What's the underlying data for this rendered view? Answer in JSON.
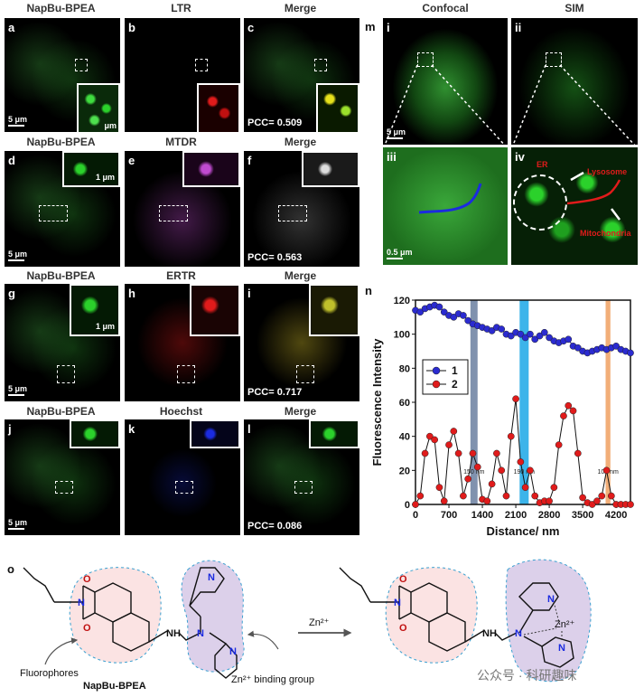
{
  "headers": {
    "col1": "NapBu-BPEA",
    "col2_row1": "LTR",
    "col3": "Merge",
    "col2_row2": "MTDR",
    "col2_row3": "ERTR",
    "col2_row4": "Hoechst",
    "confocal": "Confocal",
    "sim": "SIM"
  },
  "panels": {
    "a": "a",
    "b": "b",
    "c": "c",
    "d": "d",
    "e": "e",
    "f": "f",
    "g": "g",
    "h": "h",
    "i": "i",
    "j": "j",
    "k": "k",
    "l": "l",
    "m": "m",
    "mi": "i",
    "mii": "ii",
    "miii": "iii",
    "miv": "iv",
    "n": "n",
    "o": "o"
  },
  "scale": {
    "five_um": "5 μm",
    "one_um": "1 μm",
    "half_um": "0.5 μm",
    "um": "μm"
  },
  "pcc": {
    "c": "PCC= 0.509",
    "f": "PCC= 0.563",
    "i": "PCC= 0.717",
    "l": "PCC= 0.086"
  },
  "sim_labels": {
    "er": "ER",
    "lysosome": "Lysosome",
    "mitochondria": "Mitochondria"
  },
  "colors": {
    "green": "#2bd12b",
    "red": "#e01b1b",
    "magenta": "#c04bd0",
    "blue": "#1b2be0",
    "yellow": "#e6e01b"
  },
  "chart_data": {
    "type": "line",
    "xlabel": "Distance/ nm",
    "ylabel": "Fluorescence Intensity",
    "xlim": [
      0,
      4500
    ],
    "ylim": [
      0,
      120
    ],
    "xticks": [
      0,
      700,
      1400,
      2100,
      2800,
      3500,
      4200
    ],
    "yticks": [
      0,
      20,
      40,
      60,
      80,
      100,
      120
    ],
    "series": [
      {
        "name": "1",
        "color": "#2b2bd0",
        "x": [
          0,
          100,
          200,
          300,
          400,
          500,
          600,
          700,
          800,
          900,
          1000,
          1100,
          1200,
          1300,
          1400,
          1500,
          1600,
          1700,
          1800,
          1900,
          2000,
          2100,
          2200,
          2300,
          2400,
          2500,
          2600,
          2700,
          2800,
          2900,
          3000,
          3100,
          3200,
          3300,
          3400,
          3500,
          3600,
          3700,
          3800,
          3900,
          4000,
          4100,
          4200,
          4300,
          4400,
          4500
        ],
        "y": [
          114,
          113,
          115,
          116,
          117,
          116,
          113,
          111,
          110,
          112,
          111,
          108,
          106,
          105,
          104,
          103,
          102,
          104,
          103,
          100,
          99,
          101,
          100,
          98,
          100,
          97,
          99,
          101,
          98,
          96,
          95,
          96,
          97,
          93,
          92,
          90,
          89,
          90,
          91,
          92,
          91,
          92,
          93,
          91,
          90,
          89
        ]
      },
      {
        "name": "2",
        "color": "#e01b1b",
        "x": [
          0,
          100,
          200,
          300,
          400,
          500,
          600,
          700,
          800,
          900,
          1000,
          1100,
          1200,
          1300,
          1400,
          1500,
          1600,
          1700,
          1800,
          1900,
          2000,
          2100,
          2200,
          2300,
          2400,
          2500,
          2600,
          2700,
          2800,
          2900,
          3000,
          3100,
          3200,
          3300,
          3400,
          3500,
          3600,
          3700,
          3800,
          3900,
          4000,
          4100,
          4200,
          4300,
          4400,
          4500
        ],
        "y": [
          0,
          5,
          30,
          40,
          38,
          10,
          2,
          35,
          43,
          30,
          5,
          15,
          30,
          22,
          3,
          2,
          12,
          30,
          20,
          5,
          40,
          62,
          25,
          10,
          20,
          5,
          1,
          2,
          2,
          10,
          35,
          52,
          58,
          55,
          30,
          4,
          1,
          0,
          2,
          5,
          20,
          5,
          0,
          0,
          0,
          0
        ]
      }
    ],
    "bands": [
      {
        "x0": 1150,
        "x1": 1300,
        "color": "#6a7fa0",
        "label": "150 nm"
      },
      {
        "x0": 2180,
        "x1": 2370,
        "color": "#1aa7e6",
        "label": "190 nm"
      },
      {
        "x0": 3980,
        "x1": 4080,
        "color": "#f0a060",
        "label": "100 nm"
      }
    ],
    "legend": "top-left"
  },
  "scheme": {
    "fluorophores": "Fluorophores",
    "napbu": "NapBu-BPEA",
    "zn_binding": "Zn²⁺ binding group",
    "zn_arrow": "Zn²⁺",
    "zn_ion": "Zn²⁺",
    "nh": "NH",
    "n": "N",
    "o": "O",
    "watermark": "公众号 · 科研趣味"
  }
}
